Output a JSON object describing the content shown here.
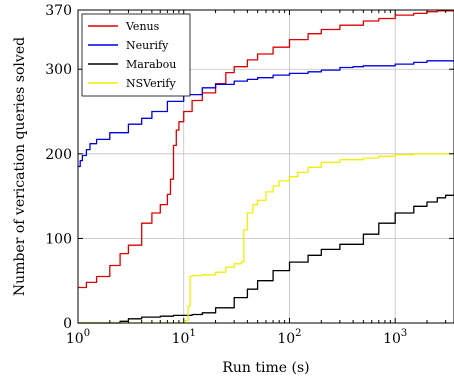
{
  "chart_data": {
    "type": "line",
    "xlabel": "Run time (s)",
    "ylabel": "Number of verication queries solved",
    "x_scale": "log",
    "xlim": [
      1,
      3600
    ],
    "ylim": [
      0,
      370
    ],
    "x_ticks": [
      1,
      10,
      100,
      1000
    ],
    "x_tick_labels": [
      {
        "base": "10",
        "exp": "0"
      },
      {
        "base": "10",
        "exp": "1"
      },
      {
        "base": "10",
        "exp": "2"
      },
      {
        "base": "10",
        "exp": "3"
      }
    ],
    "y_ticks": [
      0,
      100,
      200,
      300,
      370
    ],
    "y_tick_labels": [
      "0",
      "100",
      "200",
      "300",
      "370"
    ],
    "grid": true,
    "legend_position": "top-left",
    "series": [
      {
        "name": "Venus",
        "color": "#e00000",
        "x": [
          1,
          1.2,
          1.5,
          2,
          2.5,
          3,
          4,
          5,
          6,
          7,
          7.5,
          8,
          8.5,
          9,
          10,
          12,
          15,
          20,
          25,
          30,
          40,
          50,
          70,
          100,
          150,
          200,
          300,
          500,
          700,
          1000,
          1500,
          2000,
          2500,
          3600
        ],
        "y": [
          42,
          48,
          55,
          68,
          82,
          92,
          118,
          130,
          140,
          152,
          170,
          210,
          228,
          238,
          250,
          263,
          272,
          283,
          296,
          303,
          311,
          318,
          326,
          335,
          342,
          347,
          352,
          357,
          360,
          364,
          366,
          368,
          369,
          370
        ]
      },
      {
        "name": "Neurify",
        "color": "#0000e0",
        "x": [
          1,
          1.05,
          1.1,
          1.2,
          1.3,
          1.5,
          2,
          3,
          4,
          5,
          7,
          10,
          15,
          20,
          30,
          40,
          50,
          70,
          100,
          150,
          200,
          300,
          400,
          500,
          700,
          1000,
          1500,
          2000,
          3000,
          3600
        ],
        "y": [
          185,
          192,
          198,
          205,
          212,
          217,
          225,
          235,
          242,
          250,
          262,
          270,
          278,
          282,
          286,
          288,
          290,
          293,
          295,
          297,
          299,
          302,
          303,
          304,
          304,
          306,
          308,
          310,
          310,
          310
        ]
      },
      {
        "name": "Marabou",
        "color": "#000000",
        "x": [
          1,
          2,
          2.5,
          3,
          4,
          6,
          8,
          12,
          15,
          20,
          30,
          40,
          50,
          70,
          100,
          150,
          200,
          300,
          500,
          700,
          1000,
          1500,
          2000,
          2500,
          3000,
          3600
        ],
        "y": [
          0,
          0,
          2,
          5,
          7,
          8,
          9,
          10,
          12,
          18,
          30,
          40,
          50,
          62,
          72,
          80,
          87,
          93,
          105,
          118,
          130,
          138,
          143,
          148,
          151,
          153
        ]
      },
      {
        "name": "NSVerify",
        "color": "#f0f000",
        "x": [
          1,
          5,
          10,
          11,
          11.5,
          12,
          15,
          20,
          25,
          30,
          35,
          37,
          40,
          45,
          50,
          60,
          70,
          80,
          100,
          120,
          150,
          200,
          300,
          500,
          700,
          1000,
          1500,
          2000,
          3600
        ],
        "y": [
          0,
          0,
          3,
          20,
          55,
          56,
          57,
          60,
          66,
          70,
          72,
          110,
          130,
          140,
          145,
          155,
          162,
          168,
          173,
          178,
          184,
          190,
          193,
          195,
          197,
          199,
          200,
          200,
          200
        ]
      }
    ]
  }
}
